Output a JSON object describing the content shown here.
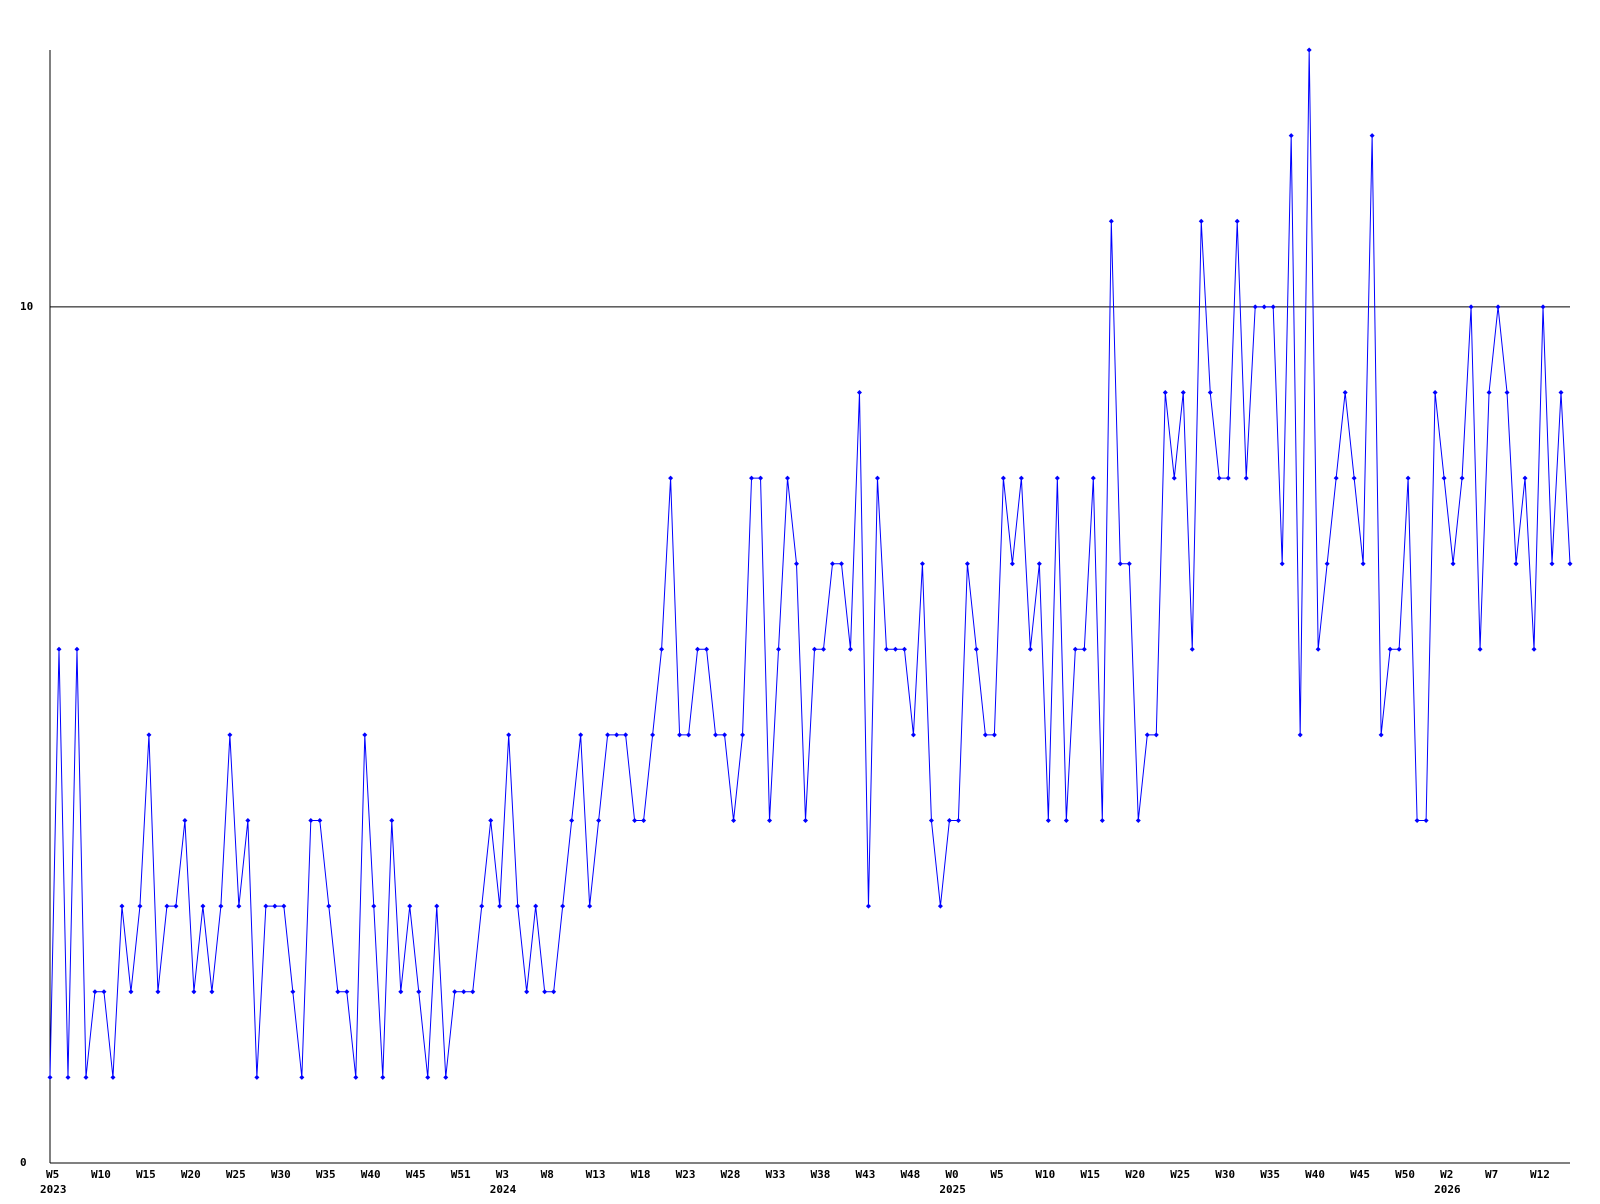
{
  "chart_data": {
    "type": "line",
    "categories": [
      "W5",
      null,
      null,
      null,
      null,
      "W10",
      null,
      null,
      null,
      null,
      "W15",
      null,
      null,
      null,
      null,
      "W20",
      null,
      null,
      null,
      null,
      "W25",
      null,
      null,
      null,
      null,
      "W30",
      null,
      null,
      null,
      null,
      "W35",
      null,
      null,
      null,
      null,
      "W40",
      null,
      null,
      null,
      null,
      "W45",
      null,
      null,
      null,
      null,
      "W51",
      null,
      null,
      null,
      null,
      "W3",
      null,
      null,
      null,
      null,
      "W8",
      null,
      null,
      null,
      null,
      "W13",
      null,
      null,
      null,
      null,
      "W18",
      null,
      null,
      null,
      null,
      "W23",
      null,
      null,
      null,
      null,
      "W28",
      null,
      null,
      null,
      null,
      "W33",
      null,
      null,
      null,
      null,
      "W38",
      null,
      null,
      null,
      null,
      "W43",
      null,
      null,
      null,
      null,
      "W48",
      null,
      null,
      null,
      null,
      "W0",
      null,
      null,
      null,
      null,
      "W5",
      null,
      null,
      null,
      null,
      "W10",
      null,
      null,
      null,
      null,
      "W15",
      null,
      null,
      null,
      null,
      "W20",
      null,
      null,
      null,
      null,
      "W25",
      null,
      null,
      null,
      null,
      "W30",
      null,
      null,
      null,
      null,
      "W35",
      null,
      null,
      null,
      null,
      "W40",
      null,
      null,
      null,
      null,
      "W45",
      null,
      null,
      null,
      null,
      "W50",
      null,
      null,
      null,
      null,
      "W2",
      null,
      null,
      null,
      null,
      "W7",
      null,
      null,
      null,
      null,
      "W12",
      null,
      null,
      null,
      null
    ],
    "category_years": [
      "2023",
      null,
      null,
      null,
      null,
      null,
      null,
      null,
      null,
      null,
      null,
      null,
      null,
      null,
      null,
      null,
      null,
      null,
      null,
      null,
      null,
      null,
      null,
      null,
      null,
      null,
      null,
      null,
      null,
      null,
      null,
      null,
      null,
      null,
      null,
      null,
      null,
      null,
      null,
      null,
      null,
      null,
      null,
      null,
      null,
      null,
      null,
      null,
      null,
      null,
      "2024",
      null,
      null,
      null,
      null,
      null,
      null,
      null,
      null,
      null,
      null,
      null,
      null,
      null,
      null,
      null,
      null,
      null,
      null,
      null,
      null,
      null,
      null,
      null,
      null,
      null,
      null,
      null,
      null,
      null,
      null,
      null,
      null,
      null,
      null,
      null,
      null,
      null,
      null,
      null,
      null,
      null,
      null,
      null,
      null,
      null,
      null,
      null,
      null,
      null,
      "2025",
      null,
      null,
      null,
      null,
      null,
      null,
      null,
      null,
      null,
      null,
      null,
      null,
      null,
      null,
      null,
      null,
      null,
      null,
      null,
      null,
      null,
      null,
      null,
      null,
      null,
      null,
      null,
      null,
      null,
      null,
      null,
      null,
      null,
      null,
      null,
      null,
      null,
      null,
      null,
      null,
      null,
      null,
      null,
      null,
      null,
      null,
      null,
      null,
      null,
      null,
      null,
      null,
      null,
      null,
      "2026",
      null,
      null,
      null,
      null,
      null,
      null,
      null,
      null,
      null,
      null,
      null,
      null,
      null,
      null
    ],
    "series": [
      {
        "color": "#0000ff",
        "values": [
          1,
          6,
          1,
          6,
          1,
          2,
          2,
          1,
          3,
          2,
          3,
          5,
          2,
          3,
          3,
          4,
          2,
          3,
          2,
          3,
          5,
          3,
          4,
          1,
          3,
          3,
          3,
          2,
          1,
          4,
          4,
          3,
          2,
          2,
          1,
          5,
          3,
          1,
          4,
          2,
          3,
          2,
          1,
          3,
          1,
          2,
          2,
          2,
          3,
          4,
          3,
          5,
          3,
          2,
          3,
          2,
          2,
          3,
          4,
          5,
          3,
          4,
          5,
          5,
          5,
          4,
          4,
          5,
          6,
          8,
          5,
          5,
          6,
          6,
          5,
          5,
          4,
          5,
          8,
          8,
          4,
          6,
          8,
          7,
          4,
          6,
          6,
          7,
          7,
          6,
          9,
          3,
          8,
          6,
          6,
          6,
          5,
          7,
          4,
          3,
          4,
          4,
          7,
          6,
          5,
          5,
          8,
          7,
          8,
          6,
          7,
          4,
          8,
          4,
          6,
          6,
          8,
          4,
          11,
          7,
          7,
          4,
          5,
          5,
          9,
          8,
          9,
          6,
          11,
          9,
          8,
          8,
          11,
          8,
          10,
          10,
          10,
          7,
          12,
          5,
          13,
          6,
          7,
          8,
          9,
          8,
          7,
          12,
          5,
          6,
          6,
          8,
          4,
          4,
          9,
          8,
          7,
          8,
          10,
          6,
          9,
          10,
          9,
          7,
          8,
          6,
          10,
          7,
          9,
          7
        ]
      }
    ],
    "ylim": [
      0,
      13
    ],
    "yticks": [
      0,
      10
    ],
    "grid": true,
    "axis_color": "#000000"
  }
}
